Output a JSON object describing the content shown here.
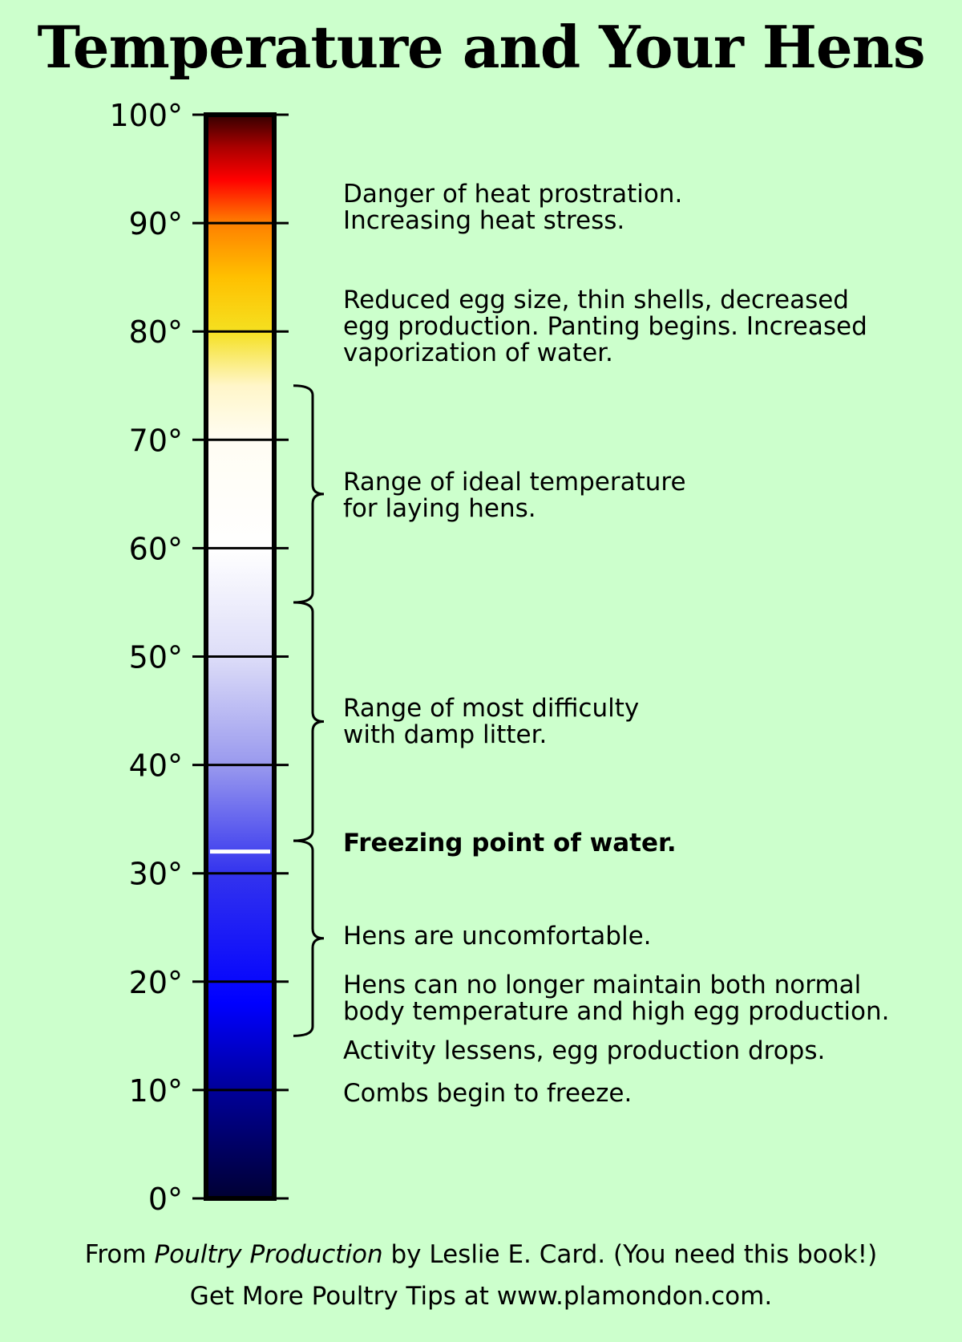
{
  "title": "Temperature and Your Hens",
  "thermometer": {
    "unit_symbol": "°",
    "min": 0,
    "max": 100,
    "ticks": [
      {
        "value": 0,
        "label": "0°"
      },
      {
        "value": 10,
        "label": "10°"
      },
      {
        "value": 20,
        "label": "20°"
      },
      {
        "value": 30,
        "label": "30°"
      },
      {
        "value": 40,
        "label": "40°"
      },
      {
        "value": 50,
        "label": "50°"
      },
      {
        "value": 60,
        "label": "60°"
      },
      {
        "value": 70,
        "label": "70°"
      },
      {
        "value": 80,
        "label": "80°"
      },
      {
        "value": 90,
        "label": "90°"
      },
      {
        "value": 100,
        "label": "100°"
      }
    ],
    "gradient_stops": [
      {
        "value": 0,
        "color": "#000033"
      },
      {
        "value": 10,
        "color": "#000099"
      },
      {
        "value": 18,
        "color": "#0000ff"
      },
      {
        "value": 30,
        "color": "#3333ee"
      },
      {
        "value": 40,
        "color": "#9999ee"
      },
      {
        "value": 50,
        "color": "#ddddf8"
      },
      {
        "value": 60,
        "color": "#ffffff"
      },
      {
        "value": 70,
        "color": "#fffdf3"
      },
      {
        "value": 75,
        "color": "#fff6c9"
      },
      {
        "value": 80,
        "color": "#f5e020"
      },
      {
        "value": 85,
        "color": "#ffc000"
      },
      {
        "value": 90,
        "color": "#ff8000"
      },
      {
        "value": 94,
        "color": "#ff0000"
      },
      {
        "value": 97,
        "color": "#aa0000"
      },
      {
        "value": 100,
        "color": "#330000"
      }
    ],
    "freezing_marker": {
      "value": 32,
      "color": "#ffffff"
    },
    "brackets": [
      {
        "from": 55,
        "to": 75,
        "note": "Range of ideal temperature for laying hens."
      },
      {
        "from": 33,
        "to": 55,
        "note": "Range of most difficulty with damp litter."
      },
      {
        "from": 15,
        "to": 33,
        "note": "Hens are uncomfortable."
      }
    ]
  },
  "notes": {
    "heat_prostration": [
      "Danger of heat prostration.",
      "Increasing heat stress."
    ],
    "reduced_egg": [
      "Reduced egg size, thin shells, decreased",
      "egg production. Panting begins. Increased",
      "vaporization of water."
    ],
    "ideal_range": [
      "Range of ideal temperature",
      "for laying hens."
    ],
    "damp_litter": [
      "Range of most difficulty",
      "with damp litter."
    ],
    "freezing": "Freezing point of water.",
    "uncomfortable": "Hens are uncomfortable.",
    "cannot_maintain": [
      "Hens can no longer maintain both normal",
      "body temperature and high egg production."
    ],
    "activity": "Activity lessens, egg production drops.",
    "combs": "Combs begin to freeze."
  },
  "footer": {
    "source_prefix": "From ",
    "book_title": "Poultry Production",
    "source_suffix": " by Leslie E. Card. (You need this book!)",
    "website_line": "Get More Poultry Tips at www.plamondon.com."
  }
}
